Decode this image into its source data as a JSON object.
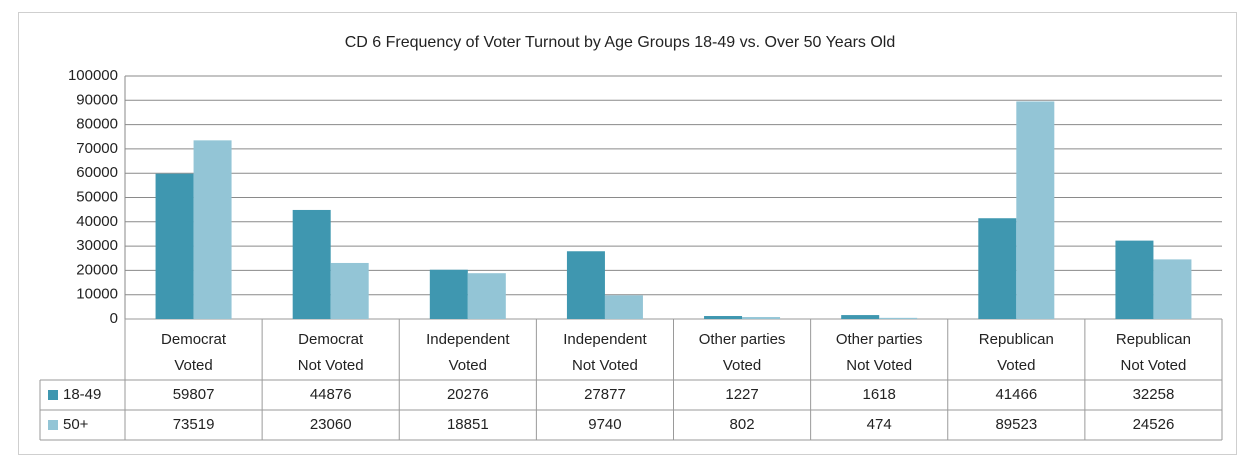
{
  "chart_data": {
    "type": "bar",
    "title": "CD 6 Frequency of Voter Turnout by Age Groups 18-49 vs. Over 50 Years Old",
    "categories": [
      [
        "Democrat",
        "Voted"
      ],
      [
        "Democrat",
        "Not Voted"
      ],
      [
        "Independent",
        "Voted"
      ],
      [
        "Independent",
        "Not Voted"
      ],
      [
        "Other parties",
        "Voted"
      ],
      [
        "Other parties",
        "Not Voted"
      ],
      [
        "Republican",
        "Voted"
      ],
      [
        "Republican",
        "Not Voted"
      ]
    ],
    "series": [
      {
        "name": "18-49",
        "color": "#3f97b0",
        "values": [
          59807,
          44876,
          20276,
          27877,
          1227,
          1618,
          41466,
          32258
        ]
      },
      {
        "name": "50+",
        "color": "#93c5d6",
        "values": [
          73519,
          23060,
          18851,
          9740,
          802,
          474,
          89523,
          24526
        ]
      }
    ],
    "ylim": [
      0,
      100000
    ],
    "yticks": [
      0,
      10000,
      20000,
      30000,
      40000,
      50000,
      60000,
      70000,
      80000,
      90000,
      100000
    ],
    "grid": true
  }
}
